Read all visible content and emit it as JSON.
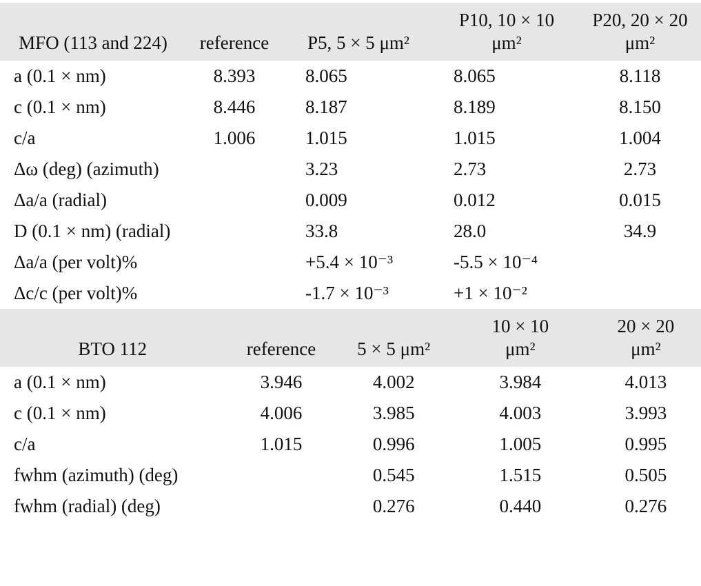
{
  "tables": [
    {
      "header": [
        "MFO (113 and 224)",
        "reference",
        "P5, 5 × 5 μm²",
        "P10, 10 × 10 μm²",
        "P20, 20 × 20 μm²"
      ],
      "rows": [
        [
          "a (0.1 × nm)",
          "8.393",
          "8.065",
          "8.065",
          "8.118"
        ],
        [
          "c (0.1 × nm)",
          "8.446",
          "8.187",
          "8.189",
          "8.150"
        ],
        [
          "c/a",
          "1.006",
          "1.015",
          "1.015",
          "1.004"
        ],
        [
          "Δω (deg) (azimuth)",
          null,
          "3.23",
          "2.73",
          "2.73"
        ],
        [
          "Δa/a (radial)",
          null,
          "0.009",
          "0.012",
          "0.015"
        ],
        [
          "D (0.1 × nm) (radial)",
          null,
          "33.8",
          "28.0",
          "34.9"
        ],
        [
          "Δa/a (per volt)%",
          null,
          "+5.4 × 10⁻³",
          "-5.5 × 10⁻⁴",
          null
        ],
        [
          "Δc/c (per volt)%",
          null,
          "-1.7 × 10⁻³",
          "+1 × 10⁻²",
          null
        ]
      ]
    },
    {
      "header": [
        "BTO 112",
        "reference",
        "5 × 5 μm²",
        "10 × 10 μm²",
        "20 × 20 μm²"
      ],
      "rows": [
        [
          "a (0.1 × nm)",
          "3.946",
          "4.002",
          "3.984",
          "4.013"
        ],
        [
          "c (0.1 × nm)",
          "4.006",
          "3.985",
          "4.003",
          "3.993"
        ],
        [
          "c/a",
          "1.015",
          "0.996",
          "1.005",
          "0.995"
        ],
        [
          "fwhm (azimuth) (deg)",
          null,
          "0.545",
          "1.515",
          "0.505"
        ],
        [
          "fwhm (radial) (deg)",
          null,
          "0.276",
          "0.440",
          "0.276"
        ]
      ]
    }
  ]
}
